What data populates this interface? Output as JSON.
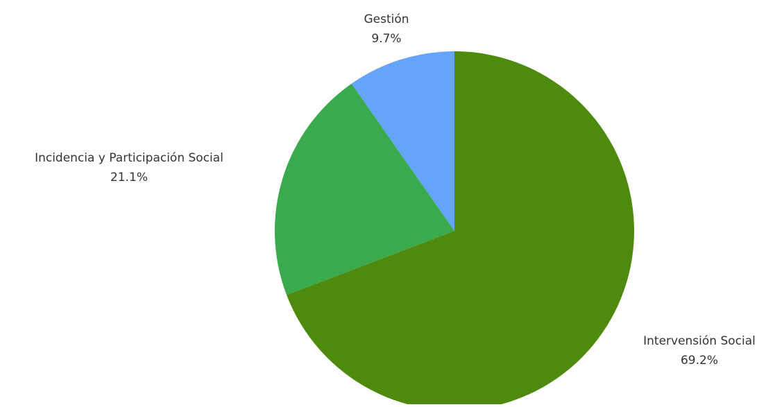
{
  "chart_data": {
    "type": "pie",
    "title": "",
    "start_angle_deg": 0,
    "direction": "clockwise",
    "slices": [
      {
        "label": "Intervensión Social",
        "value": 69.2,
        "display": "69.2%",
        "color": "#4e8a0d"
      },
      {
        "label": "Incidencia y Participación Social",
        "value": 21.1,
        "display": "21.1%",
        "color": "#3aaa4f"
      },
      {
        "label": "Gestión",
        "value": 9.7,
        "display": "9.7%",
        "color": "#64a5fa"
      }
    ]
  }
}
